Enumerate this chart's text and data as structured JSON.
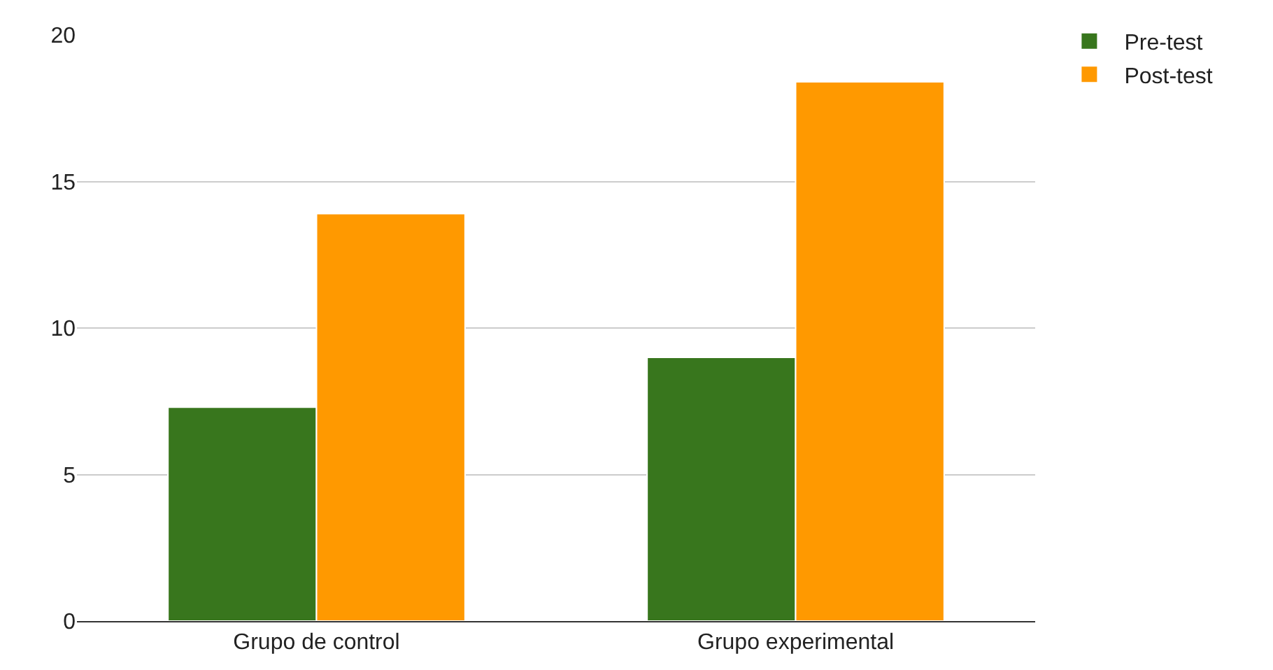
{
  "chart_data": {
    "type": "bar",
    "categories": [
      "Grupo de control",
      "Grupo experimental"
    ],
    "series": [
      {
        "name": "Pre-test",
        "color": "#38761d",
        "values": [
          7.3,
          9.0
        ]
      },
      {
        "name": "Post-test",
        "color": "#ff9900",
        "values": [
          13.9,
          18.4
        ]
      }
    ],
    "ylim": [
      0,
      20
    ],
    "yticks": [
      0,
      5,
      10,
      15,
      20
    ],
    "grid": "y",
    "legend": "top right"
  }
}
